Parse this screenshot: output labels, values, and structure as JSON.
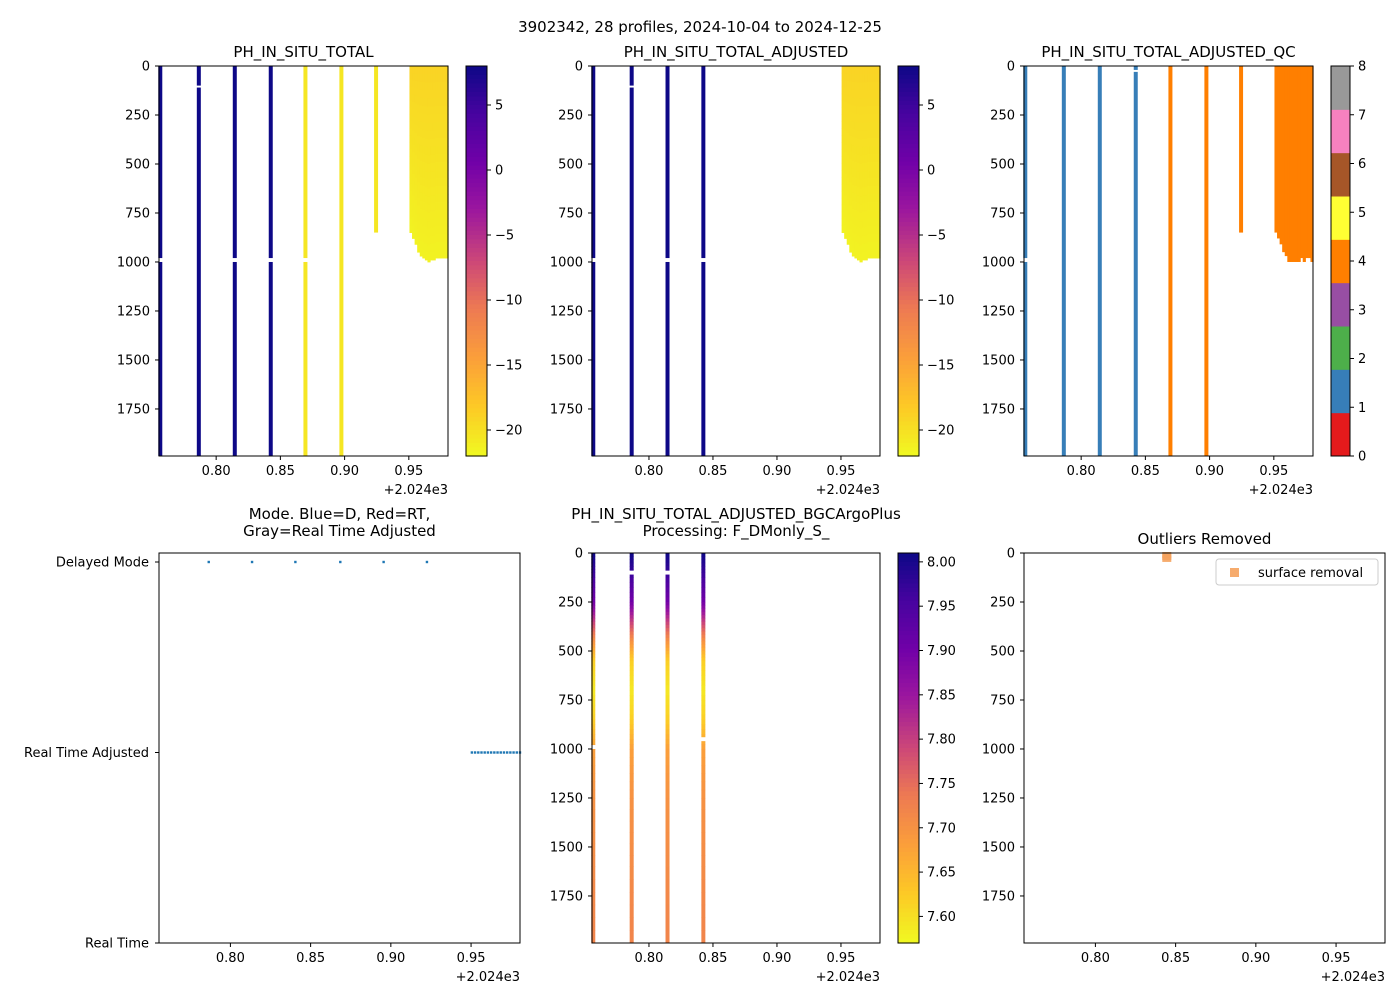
{
  "suptitle": "3902342, 28 profiles, 2024-10-04 to 2024-12-25",
  "x_axis": {
    "ticks": [
      0.8,
      0.85,
      0.9,
      0.95
    ],
    "tick_labels": [
      "0.80",
      "0.85",
      "0.90",
      "0.95"
    ],
    "offset_label": "+2.024e3",
    "range": [
      0.7555,
      0.9805
    ]
  },
  "depth_axis": {
    "ticks": [
      0,
      250,
      500,
      750,
      1000,
      1250,
      1500,
      1750
    ],
    "tick_labels": [
      "0",
      "250",
      "500",
      "750",
      "1000",
      "1250",
      "1500",
      "1750"
    ],
    "range": [
      0,
      1990
    ]
  },
  "chart_data": [
    {
      "id": "ph_total",
      "type": "heatmap",
      "title": "PH_IN_SITU_TOTAL",
      "colormap": "plasma_r",
      "colorbar": {
        "range": [
          -22,
          8
        ],
        "ticks": [
          5,
          0,
          -5,
          -10,
          -15,
          -20
        ],
        "tick_labels": [
          "5",
          "0",
          "−5",
          "−10",
          "−15",
          "−20"
        ]
      },
      "profiles": [
        {
          "x": 0.7565,
          "bottom": 1990,
          "value": 8,
          "gap": [
            980,
            1000
          ]
        },
        {
          "x": 0.7865,
          "bottom": 1990,
          "value": 8,
          "gap": [
            100,
            110
          ]
        },
        {
          "x": 0.8145,
          "bottom": 1990,
          "value": 8,
          "gap": [
            980,
            1000
          ]
        },
        {
          "x": 0.8425,
          "bottom": 1990,
          "value": 8,
          "gap": [
            980,
            1000
          ]
        },
        {
          "x": 0.8695,
          "bottom": 1990,
          "value": -20.5,
          "gap": [
            980,
            1000
          ]
        },
        {
          "x": 0.8975,
          "bottom": 1990,
          "value": -20.5
        },
        {
          "x": 0.9245,
          "bottom": 850,
          "value": -20.5
        }
      ],
      "block": {
        "x_start": 0.9505,
        "x_end": 0.9805,
        "value_top": -19,
        "value_bottom": -21.5,
        "bottoms": [
          850,
          880,
          910,
          950,
          970,
          980,
          990,
          1000,
          990,
          990,
          980,
          980,
          980,
          980,
          980
        ]
      }
    },
    {
      "id": "ph_adjusted",
      "type": "heatmap",
      "title": "PH_IN_SITU_TOTAL_ADJUSTED",
      "colormap": "plasma_r",
      "colorbar": {
        "range": [
          -22,
          8
        ],
        "ticks": [
          5,
          0,
          -5,
          -10,
          -15,
          -20
        ],
        "tick_labels": [
          "5",
          "0",
          "−5",
          "−10",
          "−15",
          "−20"
        ]
      },
      "profiles": [
        {
          "x": 0.7565,
          "bottom": 1990,
          "value": 8,
          "gap": [
            980,
            1000
          ]
        },
        {
          "x": 0.7865,
          "bottom": 1990,
          "value": 8,
          "gap": [
            100,
            110
          ]
        },
        {
          "x": 0.8145,
          "bottom": 1990,
          "value": 8,
          "gap": [
            980,
            1000
          ]
        },
        {
          "x": 0.8425,
          "bottom": 1990,
          "value": 8,
          "gap": [
            980,
            1000
          ]
        }
      ],
      "block": {
        "x_start": 0.9505,
        "x_end": 0.9805,
        "value_top": -19,
        "value_bottom": -21.5,
        "bottoms": [
          850,
          880,
          910,
          950,
          970,
          980,
          990,
          1000,
          990,
          990,
          980,
          980,
          980,
          980,
          980
        ]
      }
    },
    {
      "id": "ph_adjusted_qc",
      "type": "heatmap",
      "title": "PH_IN_SITU_TOTAL_ADJUSTED_QC",
      "colorbar": {
        "range": [
          0,
          8
        ],
        "ticks": [
          0,
          1,
          2,
          3,
          4,
          5,
          6,
          7,
          8
        ],
        "tick_labels": [
          "0",
          "1",
          "2",
          "3",
          "4",
          "5",
          "6",
          "7",
          "8"
        ],
        "colors": [
          "#e41a1c",
          "#377eb8",
          "#4daf4a",
          "#984ea3",
          "#ff7f00",
          "#ffff33",
          "#a65628",
          "#f781bf",
          "#999999"
        ]
      },
      "profiles": [
        {
          "x": 0.7565,
          "bottom": 1990,
          "value": 1,
          "gap": [
            980,
            1000
          ]
        },
        {
          "x": 0.7865,
          "bottom": 1990,
          "value": 1
        },
        {
          "x": 0.8145,
          "bottom": 1990,
          "value": 1
        },
        {
          "x": 0.8425,
          "bottom": 1990,
          "value": 1,
          "gap": [
            20,
            30
          ]
        },
        {
          "x": 0.8695,
          "bottom": 1990,
          "value": 4
        },
        {
          "x": 0.8975,
          "bottom": 1990,
          "value": 4
        },
        {
          "x": 0.9245,
          "bottom": 850,
          "value": 4
        }
      ],
      "block": {
        "x_start": 0.9505,
        "x_end": 0.9805,
        "value": 4,
        "bottoms": [
          850,
          880,
          910,
          950,
          970,
          1000,
          1000,
          1000,
          1000,
          1000,
          980,
          1000,
          980,
          980,
          1000
        ]
      }
    },
    {
      "id": "mode",
      "type": "scatter",
      "title": "Mode. Blue=D, Red=RT,",
      "title_line2": "Gray=Real Time Adjusted",
      "y_categories": [
        "Real Time",
        "Real Time Adjusted",
        "Delayed Mode"
      ],
      "delayed_x": [
        0.7865,
        0.8135,
        0.8405,
        0.8685,
        0.8955,
        0.9225
      ],
      "rt_adjusted_x": [
        0.9505,
        0.9525,
        0.9545,
        0.9565,
        0.9585,
        0.9605,
        0.9625,
        0.9645,
        0.9665,
        0.9685,
        0.9705,
        0.9725,
        0.9745,
        0.9765,
        0.9785,
        0.9805
      ]
    },
    {
      "id": "ph_bgc",
      "type": "heatmap",
      "title": "PH_IN_SITU_TOTAL_ADJUSTED_BGCArgoPlus",
      "title_line2": "Processing: F_DMonly_S_",
      "colormap": "plasma_r",
      "colorbar": {
        "range": [
          7.57,
          8.01
        ],
        "ticks": [
          7.6,
          7.65,
          7.7,
          7.75,
          7.8,
          7.85,
          7.9,
          7.95,
          8.0
        ],
        "tick_labels": [
          "7.60",
          "7.65",
          "7.70",
          "7.75",
          "7.80",
          "7.85",
          "7.90",
          "7.95",
          "8.00"
        ]
      },
      "profile_values": [
        [
          0,
          8.01
        ],
        [
          100,
          7.97
        ],
        [
          250,
          7.9
        ],
        [
          350,
          7.8
        ],
        [
          450,
          7.7
        ],
        [
          550,
          7.62
        ],
        [
          700,
          7.59
        ],
        [
          850,
          7.62
        ],
        [
          1000,
          7.68
        ],
        [
          1250,
          7.7
        ],
        [
          1600,
          7.71
        ],
        [
          1990,
          7.72
        ]
      ],
      "profiles": [
        {
          "x": 0.7565,
          "bottom": 1990,
          "gap": [
            980,
            1000
          ]
        },
        {
          "x": 0.7865,
          "bottom": 1990,
          "gap": [
            90,
            110
          ]
        },
        {
          "x": 0.8145,
          "bottom": 1990,
          "gap": [
            90,
            110
          ]
        },
        {
          "x": 0.8425,
          "bottom": 1990,
          "gap": [
            940,
            960
          ]
        }
      ]
    },
    {
      "id": "outliers",
      "type": "scatter",
      "title": "Outliers Removed",
      "series": [
        {
          "name": "surface removal",
          "color": "#f5a25d",
          "points": [
            [
              0.8445,
              0
            ],
            [
              0.8445,
              10
            ],
            [
              0.8445,
              20
            ]
          ]
        }
      ],
      "legend": "upper right"
    }
  ]
}
